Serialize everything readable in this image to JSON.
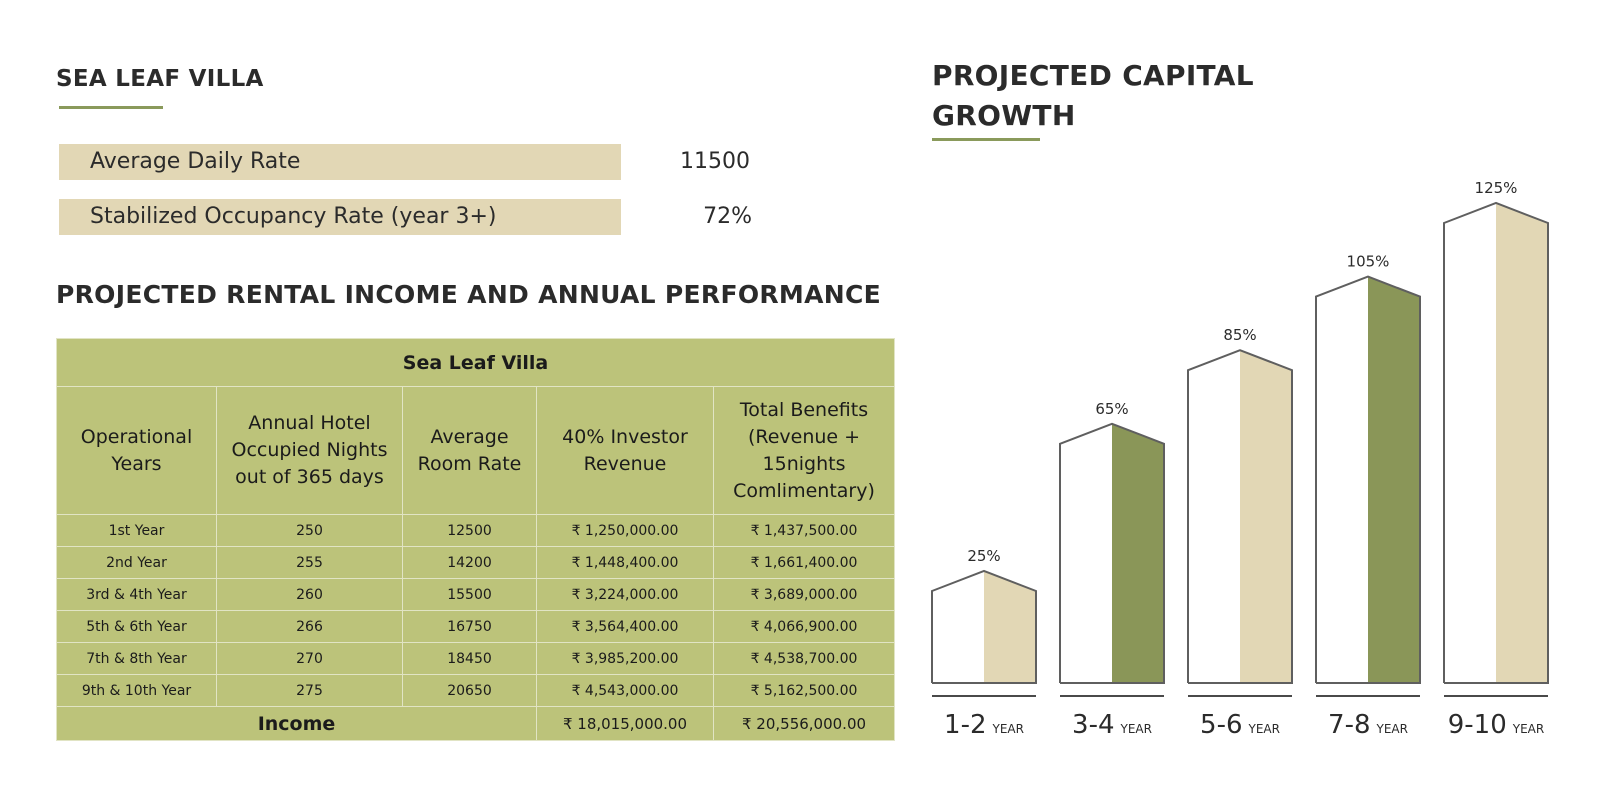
{
  "villa": {
    "title": "SEA LEAF VILLA"
  },
  "kpis": [
    {
      "label": "Average Daily Rate",
      "value": "11500"
    },
    {
      "label": "Stabilized Occupancy Rate (year 3+)",
      "value": "72%"
    }
  ],
  "income_section": {
    "title": "PROJECTED RENTAL INCOME AND ANNUAL PERFORMANCE"
  },
  "table": {
    "caption": "Sea Leaf Villa",
    "headers": [
      "Operational Years",
      "Annual Hotel Occupied Nights out of 365 days",
      "Average Room Rate",
      "40% Investor Revenue",
      "Total Benefits (Revenue + 15nights Comlimentary)"
    ],
    "rows": [
      [
        "1st Year",
        "250",
        "12500",
        "₹ 1,250,000.00",
        "₹ 1,437,500.00"
      ],
      [
        "2nd Year",
        "255",
        "14200",
        "₹ 1,448,400.00",
        "₹ 1,661,400.00"
      ],
      [
        "3rd & 4th Year",
        "260",
        "15500",
        "₹ 3,224,000.00",
        "₹ 3,689,000.00"
      ],
      [
        "5th & 6th Year",
        "266",
        "16750",
        "₹ 3,564,400.00",
        "₹ 4,066,900.00"
      ],
      [
        "7th & 8th Year",
        "270",
        "18450",
        "₹ 3,985,200.00",
        "₹ 4,538,700.00"
      ],
      [
        "9th & 10th Year",
        "275",
        "20650",
        "₹ 4,543,000.00",
        "₹ 5,162,500.00"
      ]
    ],
    "total": {
      "label": "Income",
      "investor_revenue": "₹ 18,015,000.00",
      "total_benefits": "₹ 20,556,000.00"
    }
  },
  "chart_data": {
    "type": "bar",
    "title_lines": [
      "PROJECTED  CAPITAL",
      "GROWTH"
    ],
    "categories": [
      "1-2",
      "3-4",
      "5-6",
      "7-8",
      "9-10"
    ],
    "category_suffix": "YEAR",
    "values": [
      25,
      65,
      85,
      105,
      125
    ],
    "value_labels": [
      "25%",
      "65%",
      "85%",
      "105%",
      "125%"
    ],
    "ylim": [
      0,
      125
    ],
    "grid": false,
    "legend": "none",
    "colors": {
      "fill_alternating": [
        "#e2d7b5",
        "#8a9658"
      ],
      "outline": "#5f5f5f",
      "face": "#ffffff"
    }
  }
}
